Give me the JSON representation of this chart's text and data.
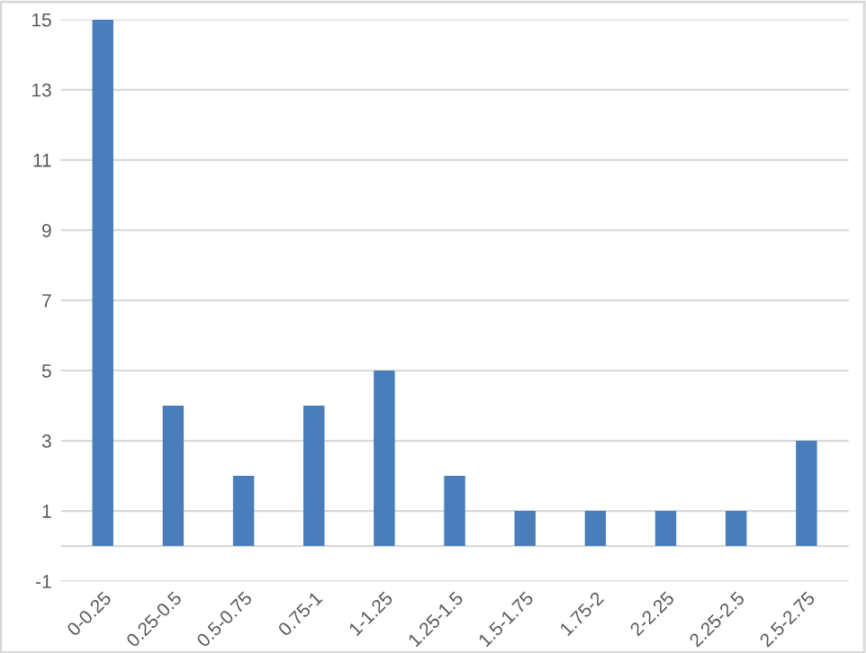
{
  "chart_data": {
    "type": "bar",
    "categories": [
      "0-0.25",
      "0.25-0.5",
      "0.5-0.75",
      "0.75-1",
      "1-1.25",
      "1.25-1.5",
      "1.5-1.75",
      "1.75-2",
      "2-2.25",
      "2.25-2.5",
      "2.5-2.75"
    ],
    "values": [
      15,
      4,
      2,
      4,
      5,
      2,
      1,
      1,
      1,
      1,
      3
    ],
    "color": "#4a7ebb",
    "ylim": [
      -1,
      15
    ],
    "yticks": [
      -1,
      1,
      3,
      5,
      7,
      9,
      11,
      13,
      15
    ],
    "grid": "y",
    "ref_lines": [
      {
        "axis": "y",
        "value": 0,
        "color": "#d9d9d9"
      }
    ]
  }
}
